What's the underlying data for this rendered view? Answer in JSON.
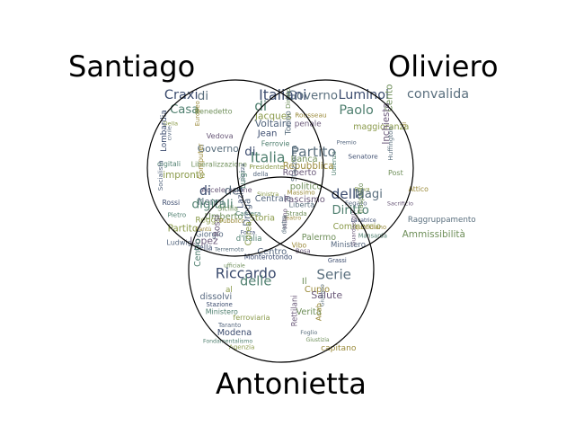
{
  "labels": {
    "set_a": "Santiago",
    "set_b": "Oliviero",
    "set_c": "Antonietta"
  },
  "palette": [
    "#3b4b6e",
    "#5a6f7e",
    "#4f7f6f",
    "#6f8f5a",
    "#8a9a4a",
    "#9a8a3a",
    "#55677f",
    "#6b5a7a"
  ],
  "regions": {
    "a_only": [
      "Craxi",
      "di",
      "Casa",
      "Benedetto",
      "Della",
      "Europeo",
      "civile",
      "Vedova",
      "Lombardia",
      "Governo",
      "digitali",
      "Liberalizzazione",
      "impronte",
      "Computer",
      "Socialista",
      "Accelerazione",
      "Rossi",
      "Nenni",
      "Pietro",
      "Umberto",
      "Partito",
      "Cantù",
      "Ludwig",
      "Lopez"
    ],
    "b_only": [
      "Luminol",
      "convalida",
      "Paolo",
      "Cento",
      "maggioranza",
      "di",
      "Premio",
      "Inchiesta",
      "Senatore",
      "Huffington",
      "Udienza",
      "Post",
      "Prova",
      "Attico",
      "Fegato",
      "Sacrificio",
      "Lavatrice",
      "Raggruppamento",
      "Mansarda",
      "Ammissibilità"
    ],
    "c_only": [
      "Riccardo",
      "Serie",
      "delle",
      "Il",
      "al",
      "Cupio",
      "dissolvi",
      "Salute",
      "Stazione",
      "Giuliano",
      "Ministero",
      "Verità",
      "ferroviaria",
      "Acab",
      "Taranto",
      "Rettilani",
      "Modena",
      "Foglio",
      "Fondamentalismo",
      "Giustizia",
      "Agenzia",
      "capitano"
    ],
    "ab": [
      "Italiani",
      "Governo",
      "di",
      "Diritto",
      "Jacques",
      "Rousseau",
      "Voltaire",
      "penale",
      "Jean",
      "Torino",
      "Ferrovie"
    ],
    "ac": [
      "di",
      "del",
      "digitali",
      "Sicilia",
      "Reggio",
      "Pubblico",
      "Giorgio",
      "Rossi",
      "della",
      "Terremoto",
      "Centro",
      "ufficiale"
    ],
    "bc": [
      "della",
      "Magi",
      "Diritto",
      "Trasporto",
      "Commercio",
      "quotidiano",
      "Ministero",
      "Guardasigilli",
      "Grassi"
    ],
    "abc": [
      "di",
      "Partito",
      "Italia",
      "Banca",
      "Presidente",
      "Repubblica",
      "della",
      "Roberto",
      "piazza",
      "Stazzema",
      "Luigi",
      "politico",
      "Sinistra",
      "Massimo",
      "Centrale",
      "Fascismo",
      "Lazio",
      "Libertà",
      "Camera",
      "Strada",
      "Storia",
      "Teatro",
      "Droga",
      "Milano",
      "Forza",
      "destra",
      "d'Italia",
      "Palermo",
      "Corea",
      "Vibo",
      "Centro",
      "Bosa",
      "Monterotondo"
    ]
  }
}
